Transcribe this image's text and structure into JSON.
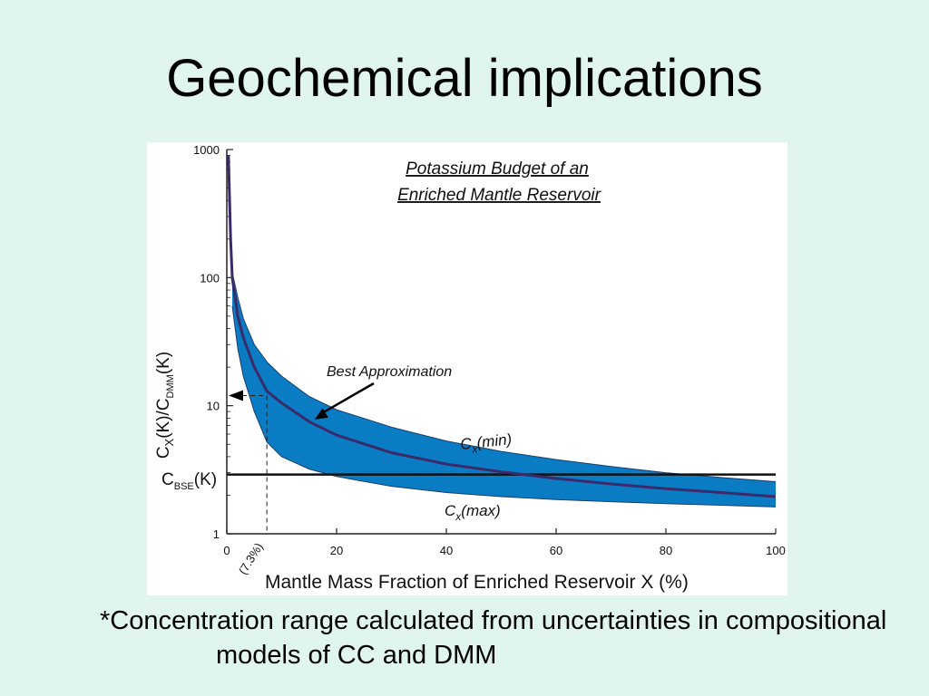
{
  "slide": {
    "title": "Geochemical implications",
    "footnote_line1": "*Concentration range calculated from uncertainties in",
    "footnote_line2": "compositional models of CC and DMM"
  },
  "colors": {
    "background": "#dff5ee",
    "band_fill": "#0a7cc4",
    "curve": "#3a2a6a",
    "axis": "#222222"
  },
  "chart_data": {
    "type": "area",
    "title_line1": "Potassium Budget of an",
    "title_line2": "Enriched Mantle Reservoir",
    "xlabel": "Mantle Mass Fraction of Enriched Reservoir X (%)",
    "ylabel_parts": [
      "C",
      "X",
      "(K)/C",
      "DMM",
      "(K)"
    ],
    "xlim": [
      0,
      100
    ],
    "ylim": [
      1,
      1000
    ],
    "yscale": "log",
    "x_ticks": [
      0,
      20,
      40,
      60,
      80,
      100
    ],
    "y_ticks": [
      1,
      10,
      100,
      1000
    ],
    "cbse": {
      "label_main": "C",
      "label_sub": "BSE",
      "label_tail": "(K)",
      "value": 2.9
    },
    "series": [
      {
        "name": "Cx(min)",
        "label_main": "C",
        "label_sub": "x",
        "label_tail": "(min)",
        "x": [
          1,
          2,
          3,
          5,
          7.3,
          10,
          15,
          20,
          30,
          40,
          50,
          60,
          70,
          80,
          90,
          100
        ],
        "y": [
          110,
          70,
          48,
          30,
          22,
          17,
          11.8,
          9.3,
          6.8,
          5.3,
          4.4,
          3.8,
          3.35,
          3.0,
          2.75,
          2.55
        ]
      },
      {
        "name": "Best Approximation",
        "label": "Best Approximation",
        "x": [
          0.3,
          0.7,
          1,
          2,
          3,
          5,
          7.3,
          10,
          15,
          20,
          30,
          40,
          50,
          60,
          70,
          80,
          90,
          100
        ],
        "y": [
          900,
          200,
          100,
          50,
          34,
          20,
          13,
          10.5,
          7.5,
          5.9,
          4.3,
          3.5,
          3.05,
          2.7,
          2.45,
          2.25,
          2.1,
          1.95
        ]
      },
      {
        "name": "Cx(max)",
        "label_main": "C",
        "label_sub": "x",
        "label_tail": "(max)",
        "x": [
          1,
          2,
          3,
          5,
          7.3,
          10,
          15,
          20,
          30,
          40,
          50,
          60,
          70,
          80,
          90,
          100
        ],
        "y": [
          60,
          28,
          17,
          9,
          5.2,
          4.0,
          3.2,
          2.8,
          2.35,
          2.1,
          1.95,
          1.85,
          1.78,
          1.72,
          1.67,
          1.62
        ]
      }
    ],
    "marker": {
      "x": 7.3,
      "y": 12,
      "label": "(7.3%)"
    },
    "annotation_arrow": {
      "label": "Best Approximation",
      "target_x": 16,
      "target_y": 7.8
    }
  }
}
